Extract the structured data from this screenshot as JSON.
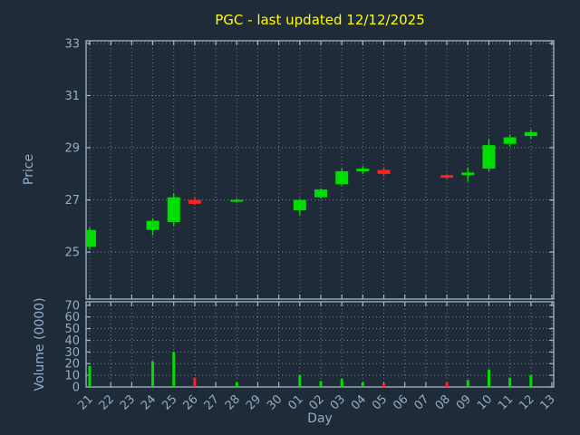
{
  "colors": {
    "background": "#1f2b38",
    "title": "#ffff00",
    "axis": "#a3b8cc",
    "label": "#93adc8",
    "grid": "#9fb0c0",
    "up": "#00dd00",
    "down": "#ff2222"
  },
  "chart_data": {
    "type": "candlestick+volume",
    "title": "PGC - last updated 12/12/2025",
    "xlabel": "Day",
    "ylabel_price": "Price",
    "ylabel_volume": "Volume (0000)",
    "grid": true,
    "x_ticks": [
      "21",
      "22",
      "23",
      "24",
      "25",
      "26",
      "27",
      "28",
      "29",
      "30",
      "01",
      "02",
      "03",
      "04",
      "05",
      "06",
      "07",
      "08",
      "09",
      "10",
      "11",
      "12",
      "13"
    ],
    "price_ticks": [
      25,
      27,
      29,
      31,
      33
    ],
    "price_range": [
      23.2,
      33.1
    ],
    "volume_ticks": [
      0,
      10,
      20,
      30,
      40,
      50,
      60,
      70
    ],
    "volume_range": [
      0,
      73
    ],
    "candles": [
      {
        "day": "21",
        "open": 25.2,
        "high": 25.95,
        "low": 25.1,
        "close": 25.85,
        "volume": 18
      },
      {
        "day": "24",
        "open": 25.85,
        "high": 26.3,
        "low": 25.65,
        "close": 26.2,
        "volume": 22
      },
      {
        "day": "25",
        "open": 26.15,
        "high": 27.25,
        "low": 26.0,
        "close": 27.1,
        "volume": 30
      },
      {
        "day": "26",
        "open": 27.0,
        "high": 27.1,
        "low": 26.8,
        "close": 26.85,
        "volume": 8
      },
      {
        "day": "28",
        "open": 26.95,
        "high": 27.05,
        "low": 26.9,
        "close": 27.0,
        "volume": 4
      },
      {
        "day": "01",
        "open": 26.6,
        "high": 27.05,
        "low": 26.4,
        "close": 27.0,
        "volume": 10
      },
      {
        "day": "02",
        "open": 27.1,
        "high": 27.45,
        "low": 27.05,
        "close": 27.4,
        "volume": 5
      },
      {
        "day": "03",
        "open": 27.6,
        "high": 28.2,
        "low": 27.55,
        "close": 28.1,
        "volume": 7
      },
      {
        "day": "04",
        "open": 28.1,
        "high": 28.3,
        "low": 28.0,
        "close": 28.2,
        "volume": 4
      },
      {
        "day": "05",
        "open": 28.15,
        "high": 28.25,
        "low": 27.9,
        "close": 28.0,
        "volume": 3
      },
      {
        "day": "08",
        "open": 27.95,
        "high": 28.0,
        "low": 27.8,
        "close": 27.85,
        "volume": 4
      },
      {
        "day": "09",
        "open": 27.95,
        "high": 28.25,
        "low": 27.7,
        "close": 28.05,
        "volume": 6
      },
      {
        "day": "10",
        "open": 28.2,
        "high": 29.35,
        "low": 28.1,
        "close": 29.1,
        "volume": 15
      },
      {
        "day": "11",
        "open": 29.15,
        "high": 29.5,
        "low": 29.05,
        "close": 29.4,
        "volume": 8
      },
      {
        "day": "12",
        "open": 29.45,
        "high": 29.7,
        "low": 29.35,
        "close": 29.6,
        "volume": 10
      }
    ]
  }
}
